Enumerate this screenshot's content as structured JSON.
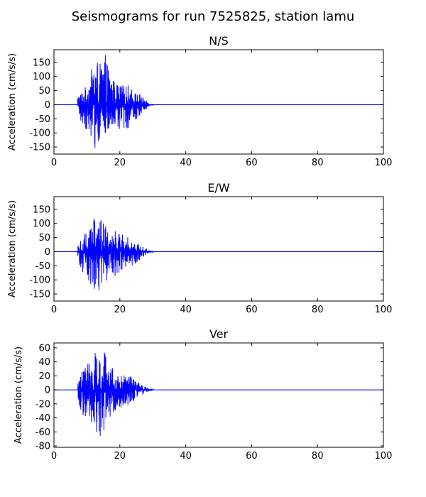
{
  "figure": {
    "title": "Seismograms for run 7525825, station lamu"
  },
  "chart_data": [
    {
      "type": "line",
      "title": "N/S",
      "xlabel": "",
      "ylabel": "Acceleration (cm/s/s)",
      "xlim": [
        0,
        100
      ],
      "ylim": [
        -175,
        195
      ],
      "xticks": [
        0,
        20,
        40,
        60,
        80,
        100
      ],
      "yticks": [
        -150,
        -100,
        -50,
        0,
        50,
        100,
        150
      ],
      "grid": false,
      "color": "#0000ff",
      "series": [
        {
          "x": [
            7.2,
            8.5,
            10,
            11.5,
            12.5,
            14,
            15.5,
            17,
            18.5,
            20,
            21.5,
            23,
            24.5,
            26,
            27.5,
            29,
            30.5
          ],
          "envelope_pos": [
            35,
            50,
            70,
            130,
            175,
            145,
            180,
            120,
            80,
            70,
            70,
            70,
            45,
            40,
            20,
            5,
            0
          ],
          "envelope_neg": [
            -30,
            -75,
            -90,
            -120,
            -160,
            -130,
            -110,
            -110,
            -80,
            -100,
            -80,
            -90,
            -60,
            -40,
            -20,
            -5,
            0
          ]
        }
      ]
    },
    {
      "type": "line",
      "title": "E/W",
      "xlabel": "",
      "ylabel": "Acceleration (cm/s/s)",
      "xlim": [
        0,
        100
      ],
      "ylim": [
        -175,
        195
      ],
      "xticks": [
        0,
        20,
        40,
        60,
        80,
        100
      ],
      "yticks": [
        -150,
        -100,
        -50,
        0,
        50,
        100,
        150
      ],
      "grid": false,
      "color": "#0000ff",
      "series": [
        {
          "x": [
            7.2,
            8.5,
            10,
            11.5,
            12.5,
            14,
            15.5,
            17,
            18.5,
            20,
            21.5,
            23,
            24.5,
            26,
            27.5,
            29,
            30.5
          ],
          "envelope_pos": [
            30,
            60,
            80,
            110,
            150,
            120,
            100,
            90,
            80,
            60,
            60,
            50,
            40,
            30,
            15,
            5,
            0
          ],
          "envelope_neg": [
            -25,
            -70,
            -100,
            -120,
            -145,
            -135,
            -120,
            -110,
            -100,
            -80,
            -70,
            -55,
            -45,
            -30,
            -15,
            -5,
            0
          ]
        }
      ]
    },
    {
      "type": "line",
      "title": "Ver",
      "xlabel": "",
      "ylabel": "Acceleration (cm/s/s)",
      "xlim": [
        0,
        100
      ],
      "ylim": [
        -82,
        67
      ],
      "xticks": [
        0,
        20,
        40,
        60,
        80,
        100
      ],
      "yticks": [
        -80,
        -60,
        -40,
        -20,
        0,
        20,
        40,
        60
      ],
      "grid": false,
      "color": "#0000ff",
      "series": [
        {
          "x": [
            7.2,
            8.5,
            10,
            11.5,
            12.5,
            14,
            15.5,
            17,
            18.5,
            20,
            21.5,
            23,
            24.5,
            26,
            27.5,
            29,
            30.5
          ],
          "envelope_pos": [
            12,
            30,
            40,
            50,
            55,
            50,
            62,
            40,
            25,
            20,
            25,
            20,
            15,
            10,
            5,
            2,
            0
          ],
          "envelope_neg": [
            -12,
            -35,
            -40,
            -50,
            -60,
            -75,
            -55,
            -40,
            -30,
            -25,
            -25,
            -20,
            -15,
            -10,
            -5,
            -2,
            0
          ]
        }
      ]
    }
  ]
}
